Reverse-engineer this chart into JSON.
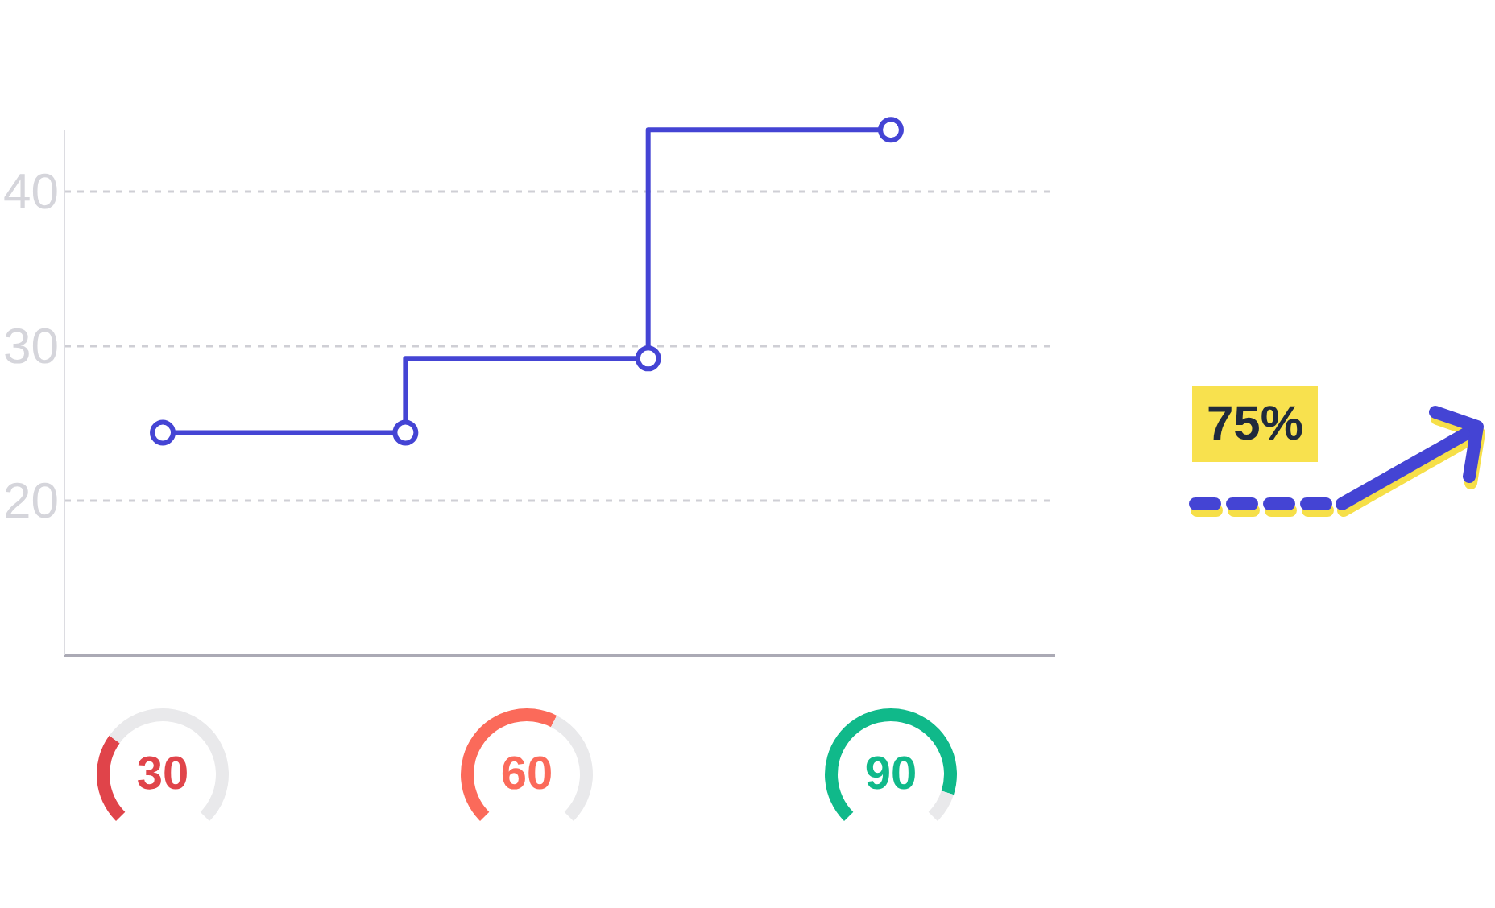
{
  "chart_data": [
    {
      "type": "step",
      "categories": [
        null,
        null,
        null,
        null
      ],
      "values": [
        24.4,
        24.4,
        29.2,
        44
      ],
      "color": "#4444d4",
      "ylim": [
        10,
        44
      ],
      "yticks": [
        20,
        30,
        40
      ],
      "grid": "y",
      "tick_labels": "y",
      "marker": "circle"
    },
    {
      "type": "other",
      "annotations": [
        "75%"
      ]
    },
    {
      "type": "donut",
      "categories": [
        null,
        null
      ],
      "values": [
        30,
        70
      ],
      "colors": [
        "#e0444a",
        "#e9e9eb"
      ],
      "annotations": [
        "30"
      ]
    },
    {
      "type": "donut",
      "categories": [
        null,
        null
      ],
      "values": [
        60,
        40
      ],
      "colors": [
        "#fb6a5a",
        "#e9e9eb"
      ],
      "annotations": [
        "60"
      ]
    },
    {
      "type": "donut",
      "categories": [
        null,
        null
      ],
      "values": [
        90,
        10
      ],
      "colors": [
        "#10b98a",
        "#e9e9eb"
      ],
      "annotations": [
        "90"
      ]
    }
  ]
}
